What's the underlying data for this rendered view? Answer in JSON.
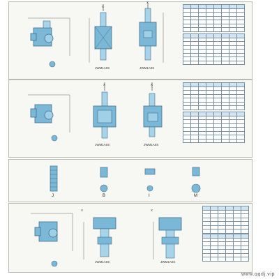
{
  "watermark": "www.qqdj.vip",
  "model_labels": {
    "b1_model_1": "JWM1A0S",
    "b1_model_2": "JWM1A0S",
    "b2_model_1": "JWM1A0S",
    "b2_model_2": "JWM1A0S",
    "b4_model_1": "JWM1A0S",
    "b4_model_2": "JWM1A0S"
  },
  "view_labels": {
    "x_arrow_1": "X",
    "x_arrow_2": "X",
    "x_arrow_3": "X",
    "x_arrow_4": "X",
    "x_arrow_5": "X",
    "x_arrow_6": "X"
  },
  "band3": {
    "captions": [
      "J",
      "B",
      "I",
      "M"
    ]
  },
  "colors": {
    "part_blue": "#7bb8d8",
    "part_dark": "#3f6f8a",
    "table_header": "#cfe3f0"
  }
}
